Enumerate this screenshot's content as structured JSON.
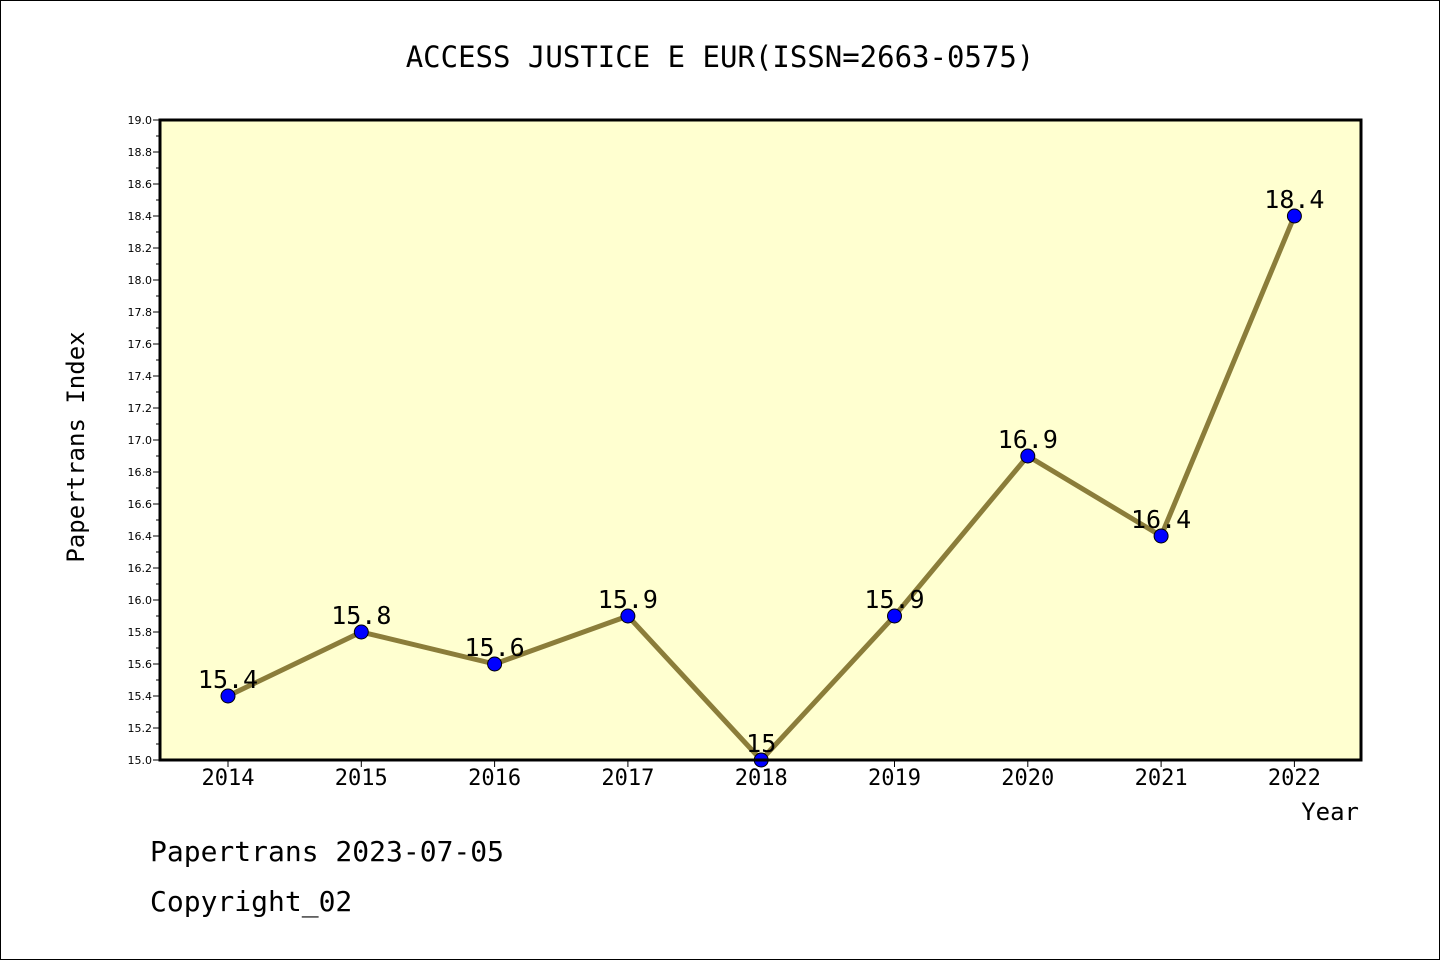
{
  "chart_data": {
    "type": "line",
    "title": "ACCESS JUSTICE E EUR(ISSN=2663-0575)",
    "xlabel": "Year",
    "ylabel": "Papertrans Index",
    "categories": [
      "2014",
      "2015",
      "2016",
      "2017",
      "2018",
      "2019",
      "2020",
      "2021",
      "2022"
    ],
    "values": [
      15.4,
      15.8,
      15.6,
      15.9,
      15.0,
      15.9,
      16.9,
      16.4,
      18.4
    ],
    "data_labels": [
      "15.4",
      "15.8",
      "15.6",
      "15.9",
      "15",
      "15.9",
      "16.9",
      "16.4",
      "18.4"
    ],
    "ylim": [
      15.0,
      19.0
    ],
    "yticks": [
      "15.0",
      "15.2",
      "15.4",
      "15.6",
      "15.8",
      "16.0",
      "16.2",
      "16.4",
      "16.6",
      "16.8",
      "17.0",
      "17.2",
      "17.4",
      "17.6",
      "17.8",
      "18.0",
      "18.2",
      "18.4",
      "18.6",
      "18.8",
      "19.0"
    ],
    "grid": false,
    "legend": "none",
    "colors": {
      "line": "#8b7d3a",
      "marker": "#0000ff",
      "plot_background": "#ffffd0"
    }
  },
  "footer": {
    "line1": "Papertrans 2023-07-05",
    "line2": "Copyright_02"
  }
}
